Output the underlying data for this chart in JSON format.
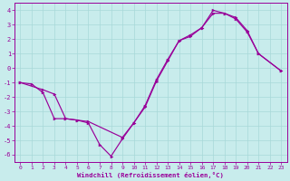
{
  "xlabel": "Windchill (Refroidissement éolien,°C)",
  "xlim": [
    -0.5,
    23.5
  ],
  "ylim": [
    -6.5,
    4.5
  ],
  "yticks": [
    -6,
    -5,
    -4,
    -3,
    -2,
    -1,
    0,
    1,
    2,
    3,
    4
  ],
  "xticks": [
    0,
    1,
    2,
    3,
    4,
    5,
    6,
    7,
    8,
    9,
    10,
    11,
    12,
    13,
    14,
    15,
    16,
    17,
    18,
    19,
    20,
    21,
    22,
    23
  ],
  "line_color": "#990099",
  "bg_color": "#c8ecec",
  "grid_color": "#a8d8d8",
  "curve1_x": [
    0,
    1,
    2,
    3,
    4,
    5,
    6,
    7,
    8,
    9,
    10,
    11,
    12,
    13,
    14,
    15,
    16,
    17,
    18,
    19,
    20,
    21,
    23
  ],
  "curve1_y": [
    -1.0,
    -1.1,
    -1.7,
    -3.5,
    -3.5,
    -3.6,
    -3.8,
    -5.3,
    -6.1,
    -4.9,
    -3.8,
    -2.6,
    -0.8,
    0.6,
    1.9,
    2.3,
    2.8,
    4.0,
    3.8,
    3.4,
    2.5,
    1.0,
    -0.2
  ],
  "curve2_x": [
    0,
    2,
    3,
    4,
    5,
    6,
    9,
    10,
    11,
    12,
    13,
    14,
    15,
    16,
    17,
    18,
    19,
    20,
    21,
    23
  ],
  "curve2_y": [
    -1.0,
    -1.5,
    -1.8,
    -3.5,
    -3.6,
    -3.7,
    -4.8,
    -3.8,
    -2.7,
    -0.9,
    0.5,
    1.9,
    2.2,
    2.8,
    3.8,
    3.8,
    3.5,
    2.6,
    1.0,
    -0.2
  ]
}
